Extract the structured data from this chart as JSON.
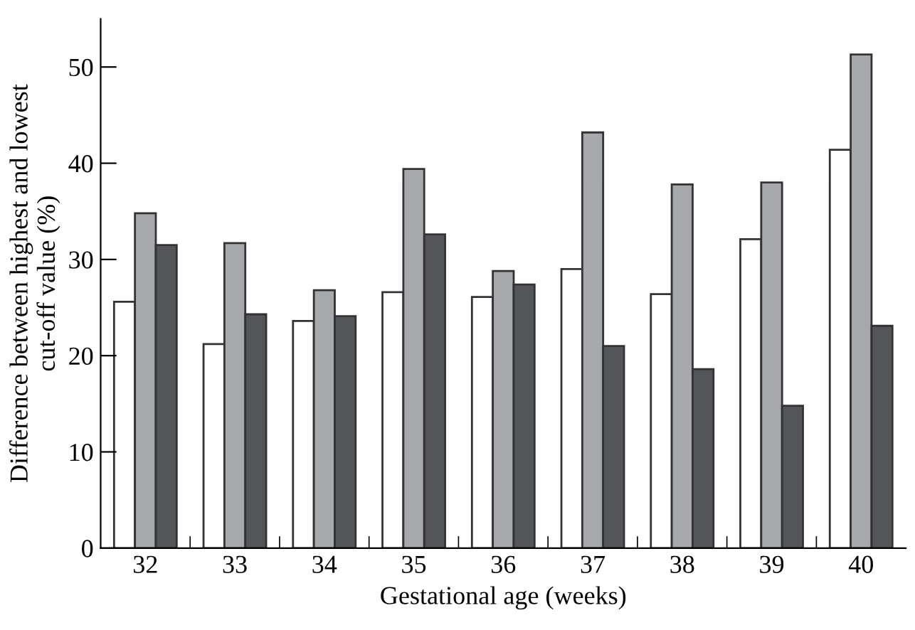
{
  "chart_data": {
    "type": "bar",
    "xlabel": "Gestational age (weeks)",
    "ylabel": "Difference between highest and lowest\ncut-off value (%)",
    "categories": [
      "32",
      "33",
      "34",
      "35",
      "36",
      "37",
      "38",
      "39",
      "40"
    ],
    "series": [
      {
        "color": "#ffffff",
        "values": [
          25.6,
          21.2,
          23.6,
          26.6,
          26.1,
          29.0,
          26.4,
          32.1,
          41.4
        ]
      },
      {
        "color": "#a7a8ac",
        "values": [
          34.8,
          31.7,
          26.8,
          39.4,
          28.8,
          43.2,
          37.8,
          38.0,
          51.3
        ]
      },
      {
        "color": "#545558",
        "values": [
          31.5,
          24.3,
          24.1,
          32.6,
          27.4,
          21.0,
          18.6,
          14.8,
          23.1
        ]
      }
    ],
    "ylim": [
      0,
      55
    ],
    "yticks": [
      0,
      10,
      20,
      30,
      40,
      50
    ],
    "grid": false,
    "legend": false
  }
}
